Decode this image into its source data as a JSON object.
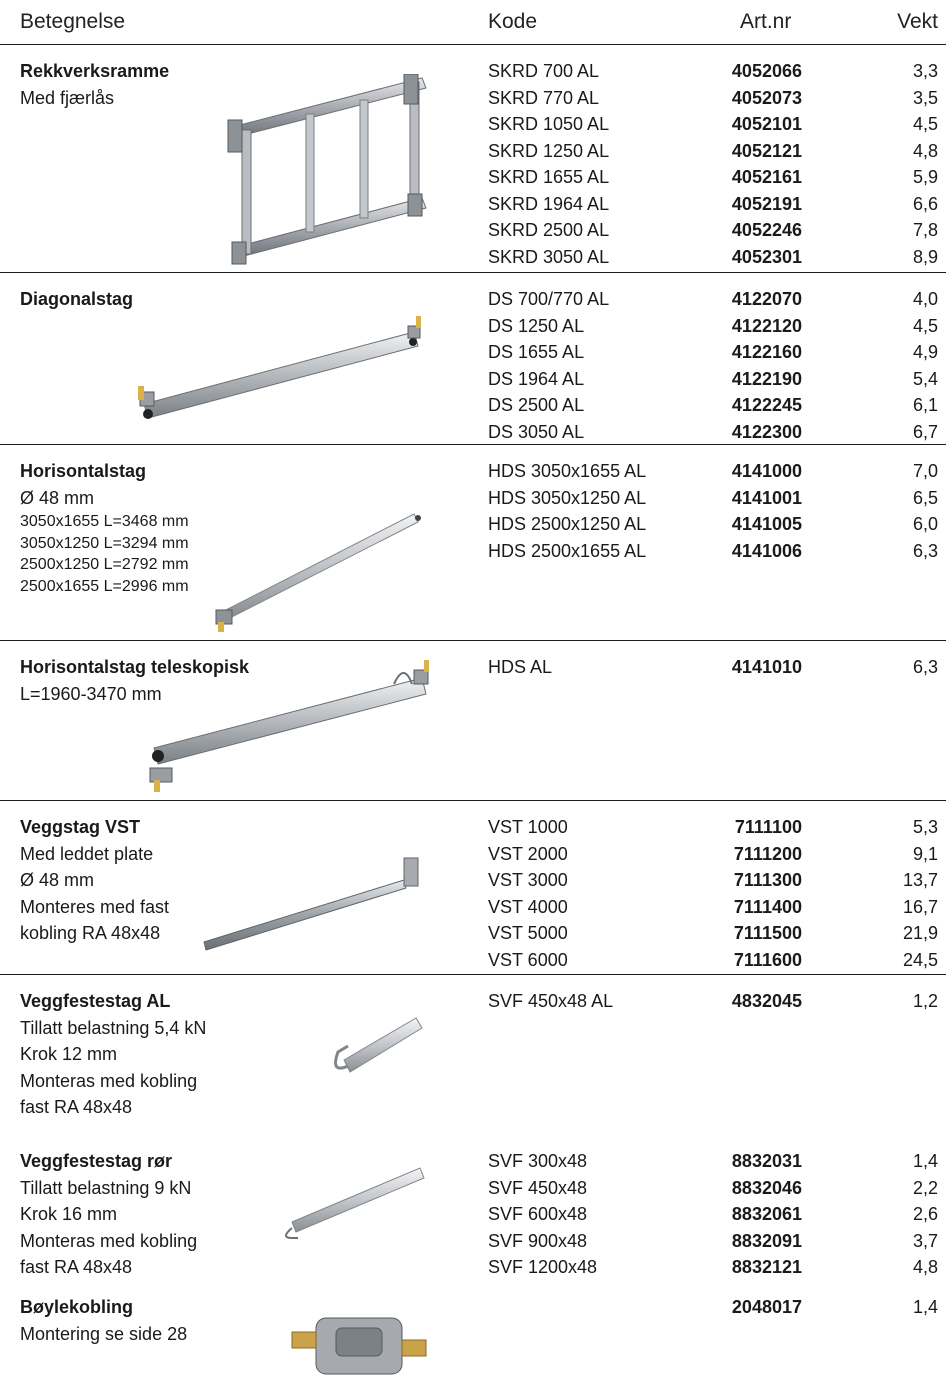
{
  "header": {
    "betegnelse": "Betegnelse",
    "kode": "Kode",
    "artnr": "Art.nr",
    "vekt": "Vekt"
  },
  "sections": [
    {
      "title": "Rekkverksramme",
      "lines": [
        "Med fjærlås"
      ],
      "small": [],
      "rows": [
        {
          "kode": "SKRD 700 AL",
          "art": "4052066",
          "vekt": "3,3"
        },
        {
          "kode": "SKRD 770 AL",
          "art": "4052073",
          "vekt": "3,5"
        },
        {
          "kode": "SKRD 1050 AL",
          "art": "4052101",
          "vekt": "4,5"
        },
        {
          "kode": "SKRD 1250 AL",
          "art": "4052121",
          "vekt": "4,8"
        },
        {
          "kode": "SKRD 1655 AL",
          "art": "4052161",
          "vekt": "5,9"
        },
        {
          "kode": "SKRD 1964 AL",
          "art": "4052191",
          "vekt": "6,6"
        },
        {
          "kode": "SKRD 2500 AL",
          "art": "4052246",
          "vekt": "7,8"
        },
        {
          "kode": "SKRD 3050 AL",
          "art": "4052301",
          "vekt": "8,9"
        }
      ]
    },
    {
      "title": "Diagonalstag",
      "lines": [],
      "small": [],
      "rows": [
        {
          "kode": "DS 700/770 AL",
          "art": "4122070",
          "vekt": "4,0"
        },
        {
          "kode": "DS 1250 AL",
          "art": "4122120",
          "vekt": "4,5"
        },
        {
          "kode": "DS 1655 AL",
          "art": "4122160",
          "vekt": "4,9"
        },
        {
          "kode": "DS 1964 AL",
          "art": "4122190",
          "vekt": "5,4"
        },
        {
          "kode": "DS 2500 AL",
          "art": "4122245",
          "vekt": "6,1"
        },
        {
          "kode": "DS 3050 AL",
          "art": "4122300",
          "vekt": "6,7"
        }
      ]
    },
    {
      "title": "Horisontalstag",
      "lines": [
        "Ø 48 mm"
      ],
      "small": [
        "3050x1655 L=3468 mm",
        "3050x1250 L=3294 mm",
        "2500x1250 L=2792 mm",
        "2500x1655 L=2996 mm"
      ],
      "rows": [
        {
          "kode": "HDS 3050x1655 AL",
          "art": "4141000",
          "vekt": "7,0"
        },
        {
          "kode": "HDS 3050x1250 AL",
          "art": "4141001",
          "vekt": "6,5"
        },
        {
          "kode": "HDS 2500x1250 AL",
          "art": "4141005",
          "vekt": "6,0"
        },
        {
          "kode": "HDS 2500x1655 AL",
          "art": "4141006",
          "vekt": "6,3"
        }
      ]
    },
    {
      "title": "Horisontalstag teleskopisk",
      "lines": [
        "L=1960-3470 mm"
      ],
      "small": [],
      "rows": [
        {
          "kode": "HDS AL",
          "art": "4141010",
          "vekt": "6,3"
        }
      ]
    },
    {
      "title": "Veggstag VST",
      "lines": [
        "Med leddet plate",
        "Ø 48 mm",
        "Monteres med fast",
        "kobling RA 48x48"
      ],
      "small": [],
      "rows": [
        {
          "kode": "VST 1000",
          "art": "7111100",
          "vekt": "5,3"
        },
        {
          "kode": "VST 2000",
          "art": "7111200",
          "vekt": "9,1"
        },
        {
          "kode": "VST 3000",
          "art": "7111300",
          "vekt": "13,7"
        },
        {
          "kode": "VST 4000",
          "art": "7111400",
          "vekt": "16,7"
        },
        {
          "kode": "VST 5000",
          "art": "7111500",
          "vekt": "21,9"
        },
        {
          "kode": "VST 6000",
          "art": "7111600",
          "vekt": "24,5"
        }
      ]
    },
    {
      "title": "Veggfestestag AL",
      "lines": [
        "Tillatt belastning 5,4 kN",
        "Krok 12 mm",
        "Monteras med kobling",
        "fast RA 48x48"
      ],
      "small": [],
      "rows": [
        {
          "kode": "SVF 450x48 AL",
          "art": "4832045",
          "vekt": "1,2"
        }
      ]
    },
    {
      "title": "Veggfestestag rør",
      "lines": [
        "Tillatt belastning 9 kN",
        "Krok 16 mm",
        "Monteras med kobling",
        "fast RA 48x48"
      ],
      "small": [],
      "rows": [
        {
          "kode": "SVF 300x48",
          "art": "8832031",
          "vekt": "1,4"
        },
        {
          "kode": "SVF 450x48",
          "art": "8832046",
          "vekt": "2,2"
        },
        {
          "kode": "SVF 600x48",
          "art": "8832061",
          "vekt": "2,6"
        },
        {
          "kode": "SVF 900x48",
          "art": "8832091",
          "vekt": "3,7"
        },
        {
          "kode": "SVF 1200x48",
          "art": "8832121",
          "vekt": "4,8"
        }
      ]
    },
    {
      "title": "Bøylekobling",
      "lines": [
        "Montering se side 28"
      ],
      "small": [],
      "rows": [
        {
          "kode": "",
          "art": "2048017",
          "vekt": "1,4"
        }
      ]
    }
  ]
}
